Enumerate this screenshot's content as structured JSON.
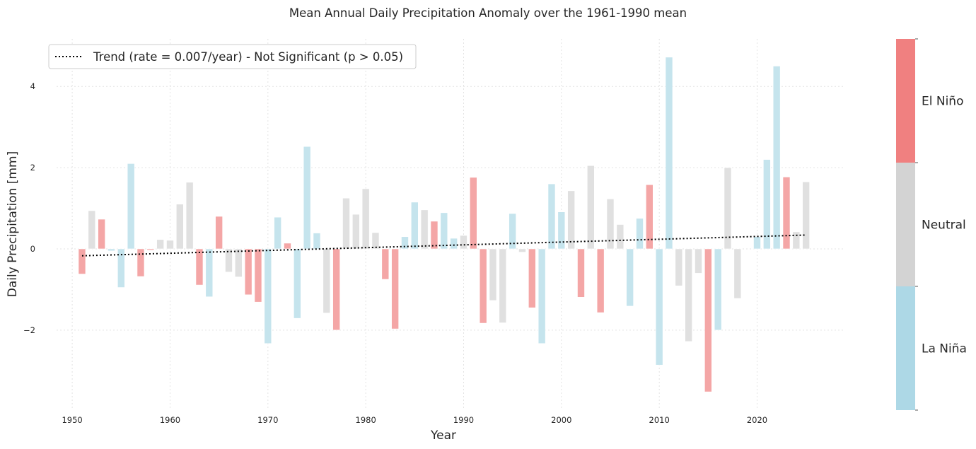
{
  "chart_data": {
    "type": "bar",
    "title": "Mean Annual Daily Precipitation Anomaly over the 1961-1990 mean",
    "xlabel": "Year",
    "ylabel": "Daily Precipitation [mm]",
    "xlim": [
      1948.4,
      2029
    ],
    "ylim": [
      -3.97,
      5.17
    ],
    "xticks": [
      1950,
      1960,
      1970,
      1980,
      1990,
      2000,
      2010,
      2020
    ],
    "yticks": [
      -2,
      0,
      2,
      4
    ],
    "ytick_labels": [
      "−2",
      "0",
      "2",
      "4"
    ],
    "grid": true,
    "legend": {
      "position": "top-left",
      "label": "Trend (rate = 0.007/year) - Not Significant (p > 0.05)"
    },
    "trend": {
      "x": [
        1951,
        2025
      ],
      "y": [
        -0.17,
        0.34
      ]
    },
    "colors": {
      "El Niño": "#f4a6a6",
      "Neutral": "#e0e0e0",
      "La Niña": "#c5e4ed"
    },
    "colorbar": {
      "labels": [
        "La Niña",
        "Neutral",
        "El Niño"
      ],
      "colors": [
        "#add8e6",
        "#d3d3d3",
        "#f08080"
      ]
    },
    "bars": [
      [
        1951,
        -0.62,
        "El Niño"
      ],
      [
        1952,
        0.94,
        "Neutral"
      ],
      [
        1953,
        0.73,
        "El Niño"
      ],
      [
        1954,
        -0.05,
        "La Niña"
      ],
      [
        1955,
        -0.95,
        "La Niña"
      ],
      [
        1956,
        2.1,
        "La Niña"
      ],
      [
        1957,
        -0.68,
        "El Niño"
      ],
      [
        1958,
        -0.03,
        "El Niño"
      ],
      [
        1959,
        0.23,
        "Neutral"
      ],
      [
        1960,
        0.21,
        "Neutral"
      ],
      [
        1961,
        1.1,
        "Neutral"
      ],
      [
        1962,
        1.64,
        "Neutral"
      ],
      [
        1963,
        -0.89,
        "El Niño"
      ],
      [
        1964,
        -1.18,
        "La Niña"
      ],
      [
        1965,
        0.8,
        "El Niño"
      ],
      [
        1966,
        -0.57,
        "Neutral"
      ],
      [
        1967,
        -0.69,
        "Neutral"
      ],
      [
        1968,
        -1.13,
        "El Niño"
      ],
      [
        1969,
        -1.31,
        "El Niño"
      ],
      [
        1970,
        -2.33,
        "La Niña"
      ],
      [
        1971,
        0.78,
        "La Niña"
      ],
      [
        1972,
        0.14,
        "El Niño"
      ],
      [
        1973,
        -1.71,
        "La Niña"
      ],
      [
        1974,
        2.52,
        "La Niña"
      ],
      [
        1975,
        0.39,
        "La Niña"
      ],
      [
        1976,
        -1.58,
        "Neutral"
      ],
      [
        1977,
        -2.0,
        "El Niño"
      ],
      [
        1978,
        1.25,
        "Neutral"
      ],
      [
        1979,
        0.85,
        "Neutral"
      ],
      [
        1980,
        1.48,
        "Neutral"
      ],
      [
        1981,
        0.4,
        "Neutral"
      ],
      [
        1982,
        -0.75,
        "El Niño"
      ],
      [
        1983,
        -1.97,
        "El Niño"
      ],
      [
        1984,
        0.3,
        "La Niña"
      ],
      [
        1985,
        1.15,
        "La Niña"
      ],
      [
        1986,
        0.96,
        "Neutral"
      ],
      [
        1987,
        0.68,
        "El Niño"
      ],
      [
        1988,
        0.89,
        "La Niña"
      ],
      [
        1989,
        0.26,
        "La Niña"
      ],
      [
        1990,
        0.33,
        "Neutral"
      ],
      [
        1991,
        1.76,
        "El Niño"
      ],
      [
        1992,
        -1.83,
        "El Niño"
      ],
      [
        1993,
        -1.27,
        "Neutral"
      ],
      [
        1994,
        -1.82,
        "Neutral"
      ],
      [
        1995,
        0.87,
        "La Niña"
      ],
      [
        1996,
        -0.08,
        "Neutral"
      ],
      [
        1997,
        -1.45,
        "El Niño"
      ],
      [
        1998,
        -2.33,
        "La Niña"
      ],
      [
        1999,
        1.6,
        "La Niña"
      ],
      [
        2000,
        0.91,
        "La Niña"
      ],
      [
        2001,
        1.43,
        "Neutral"
      ],
      [
        2002,
        -1.19,
        "El Niño"
      ],
      [
        2003,
        2.05,
        "Neutral"
      ],
      [
        2004,
        -1.57,
        "El Niño"
      ],
      [
        2005,
        1.23,
        "Neutral"
      ],
      [
        2006,
        0.6,
        "Neutral"
      ],
      [
        2007,
        -1.41,
        "La Niña"
      ],
      [
        2008,
        0.75,
        "La Niña"
      ],
      [
        2009,
        1.58,
        "El Niño"
      ],
      [
        2010,
        -2.86,
        "La Niña"
      ],
      [
        2011,
        4.72,
        "La Niña"
      ],
      [
        2012,
        -0.91,
        "Neutral"
      ],
      [
        2013,
        -2.28,
        "Neutral"
      ],
      [
        2014,
        -0.6,
        "Neutral"
      ],
      [
        2015,
        -3.52,
        "El Niño"
      ],
      [
        2016,
        -2.0,
        "La Niña"
      ],
      [
        2017,
        2.0,
        "Neutral"
      ],
      [
        2018,
        -1.22,
        "Neutral"
      ],
      [
        2020,
        0.3,
        "La Niña"
      ],
      [
        2021,
        2.2,
        "La Niña"
      ],
      [
        2022,
        4.5,
        "La Niña"
      ],
      [
        2023,
        1.77,
        "El Niño"
      ],
      [
        2024,
        0.42,
        "Neutral"
      ],
      [
        2025,
        1.65,
        "Neutral"
      ]
    ]
  }
}
